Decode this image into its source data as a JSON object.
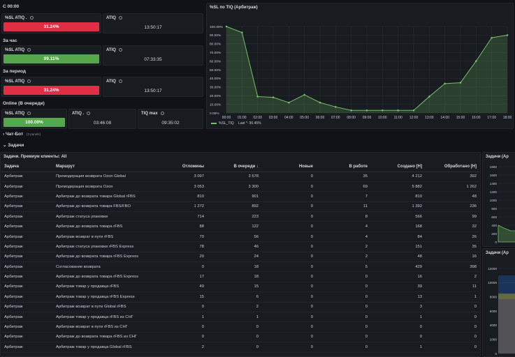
{
  "sections": {
    "s0000": "С 00:00",
    "hour": "За час",
    "period": "За период",
    "online": "Online (В очереди)",
    "chatbot": "Чат-Бот",
    "chatbot_meta": "(3 panels)",
    "tasks": "Задачи"
  },
  "stats": {
    "row1": {
      "sl_title": "%SL ATIQ .",
      "sl_value": "31.24%",
      "atiq_title": "ATIQ",
      "atiq_value": "13:50:17"
    },
    "row2": {
      "sl_title": "%SL ATIQ",
      "sl_value": "99.11%",
      "atiq_title": "ATIQ",
      "atiq_value": "07:33:35"
    },
    "row3": {
      "sl_title": "%SL ATIQ",
      "sl_value": "31.24%",
      "atiq_title": "ATIQ",
      "atiq_value": "13:50:17"
    },
    "row4": {
      "sl_title": "%SL ATIQ",
      "sl_value": "100.00%",
      "atiq_title": "ATIQ .",
      "atiq_value": "03:46:08",
      "max_title": "TIQ max",
      "max_value": "09:35:02"
    }
  },
  "colors": {
    "red": "#e02f44",
    "green": "#56a64b",
    "line": "#73bf69"
  },
  "chart_data": {
    "type": "area",
    "title": "%SL по TIQ (Арбитраж)",
    "x": [
      "00:00",
      "01:00",
      "02:00",
      "03:00",
      "04:00",
      "05:00",
      "06:00",
      "07:00",
      "08:00",
      "09:00",
      "10:00",
      "11:00",
      "12:00",
      "13:00",
      "14:00",
      "15:00",
      "16:00",
      "17:00",
      "18:00"
    ],
    "y_ticks": [
      "0.00%",
      "10.00%",
      "20.00%",
      "30.00%",
      "40.00%",
      "50.00%",
      "60.00%",
      "70.00%",
      "80.00%",
      "90.00%",
      "100.00%"
    ],
    "ylim": [
      0,
      100
    ],
    "series": [
      {
        "name": "%SL_TIQ",
        "values": [
          100,
          93,
          19,
          18,
          12,
          21,
          12,
          7,
          3,
          3,
          3,
          3,
          3,
          19,
          34,
          35,
          60,
          87,
          90
        ]
      }
    ],
    "legend": {
      "series": "%SL_TIQ",
      "last_label": "Last *: 90.45%"
    }
  },
  "table": {
    "title": "Задачи. Премиум клиенты: All",
    "headers": [
      "Задача",
      "Маршрут",
      "Отложены",
      "В очереди ↓",
      "Новые",
      "В работе",
      "Создано [H]",
      "Обработано [H]"
    ],
    "rows": [
      [
        "Арбитраж",
        "Премодерация возврата Ozon Global",
        "3 097",
        "3 578",
        "0",
        "35",
        "4 212",
        "392"
      ],
      [
        "Арбитраж",
        "Премодерация возврата Ozon",
        "3 053",
        "3 300",
        "0",
        "69",
        "5 882",
        "1 262"
      ],
      [
        "Арбитраж",
        "Арбитраж до возврата товара Global rFBS",
        "810",
        "901",
        "0",
        "7",
        "810",
        "48"
      ],
      [
        "Арбитраж",
        "Арбитраж до возврата товара FBS/FBO",
        "1 272",
        "892",
        "0",
        "11",
        "1 392",
        "236"
      ],
      [
        "Арбитраж",
        "Арбитраж статуса упаковки",
        "714",
        "223",
        "0",
        "8",
        "566",
        "99"
      ],
      [
        "Арбитраж",
        "Арбитраж до возврата товара rFBS",
        "88",
        "122",
        "0",
        "4",
        "168",
        "32"
      ],
      [
        "Арбитраж",
        "Арбитраж возврат в пути rFBS",
        "70",
        "56",
        "0",
        "4",
        "84",
        "26"
      ],
      [
        "Арбитраж",
        "Арбитраж статуса упаковки rFBS Express",
        "78",
        "46",
        "0",
        "2",
        "151",
        "35"
      ],
      [
        "Арбитраж",
        "Арбитраж до возврата товара rFBS Express",
        "20",
        "24",
        "0",
        "2",
        "48",
        "16"
      ],
      [
        "Арбитраж",
        "Согласование возврата",
        "0",
        "18",
        "0",
        "5",
        "429",
        "398"
      ],
      [
        "Арбитраж",
        "Арбитраж до возврата товара rFBS Express",
        "17",
        "18",
        "0",
        "0",
        "16",
        "2"
      ],
      [
        "Арбитраж",
        "Арбитраж товар у продавца rFBS",
        "49",
        "15",
        "0",
        "0",
        "39",
        "11"
      ],
      [
        "Арбитраж",
        "Арбитраж товар у продавца rFBS Express",
        "15",
        "6",
        "0",
        "0",
        "13",
        "1"
      ],
      [
        "Арбитраж",
        "Арбитраж возврат в пути Global rFBS",
        "0",
        "2",
        "0",
        "0",
        "3",
        "0"
      ],
      [
        "Арбитраж",
        "Арбитраж товар у продавца rFBS из СНГ",
        "1",
        "1",
        "0",
        "0",
        "1",
        "0"
      ],
      [
        "Арбитраж",
        "Арбитраж возврат в пути rFBS из СНГ",
        "0",
        "0",
        "0",
        "0",
        "0",
        "0"
      ],
      [
        "Арбитраж",
        "Арбитраж до возврата товара rFBS из СНГ",
        "0",
        "0",
        "0",
        "0",
        "0",
        "0"
      ],
      [
        "Арбитраж",
        "Арбитраж товар у продавца Global rFBS",
        "2",
        "0",
        "0",
        "0",
        "1",
        "0"
      ]
    ]
  },
  "side": {
    "panel1_title": "Задачи (Ар",
    "panel1_ticks": [
      "1800",
      "1600",
      "1400",
      "1200",
      "1000",
      "800",
      "600",
      "400",
      "200",
      "0"
    ],
    "panel2_title": "Задачи (Ар",
    "panel2_ticks": [
      "12000",
      "10000",
      "8000",
      "6000",
      "4000",
      "2000",
      "0"
    ]
  }
}
